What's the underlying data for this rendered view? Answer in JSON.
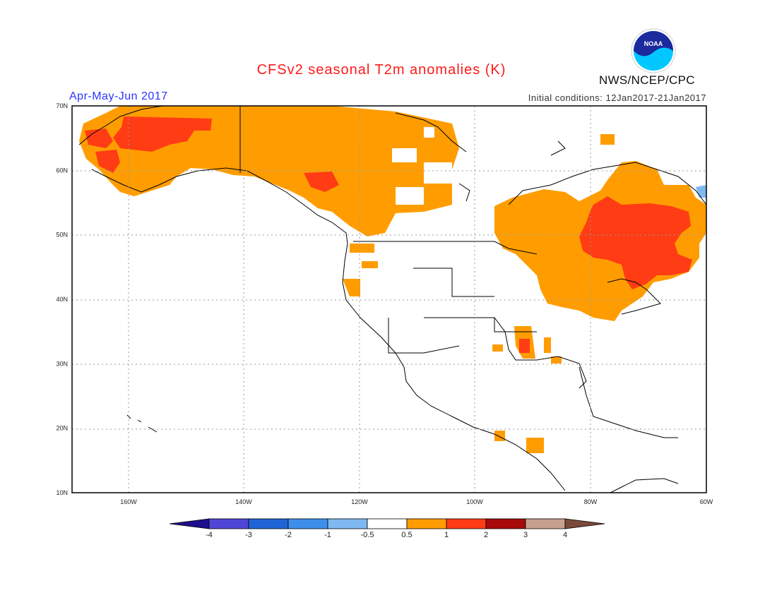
{
  "title": "CFSv2 seasonal T2m anomalies (K)",
  "season": "Apr-May-Jun 2017",
  "initial_conditions": "Initial conditions: 12Jan2017-21Jan2017",
  "organization": "NWS/NCEP/CPC",
  "logo_text": "NOAA",
  "map": {
    "lon_range": [
      -172,
      -60
    ],
    "lat_range": [
      10,
      70
    ],
    "lat_labels": [
      "70N",
      "60N",
      "50N",
      "40N",
      "30N",
      "20N",
      "10N"
    ],
    "lon_labels": [
      "160W",
      "140W",
      "120W",
      "100W",
      "80W",
      "60W"
    ]
  },
  "colorbar": {
    "labels": [
      "-4",
      "-3",
      "-2",
      "-1",
      "-0.5",
      "0.5",
      "1",
      "2",
      "3",
      "4"
    ],
    "colors": [
      "#1e0f8c",
      "#4f46d6",
      "#1f64d6",
      "#3d8fea",
      "#7fb8f2",
      "#ffffff",
      "#ff9d00",
      "#ff3c14",
      "#a80a0a",
      "#c8a090",
      "#7a4a3a"
    ]
  }
}
